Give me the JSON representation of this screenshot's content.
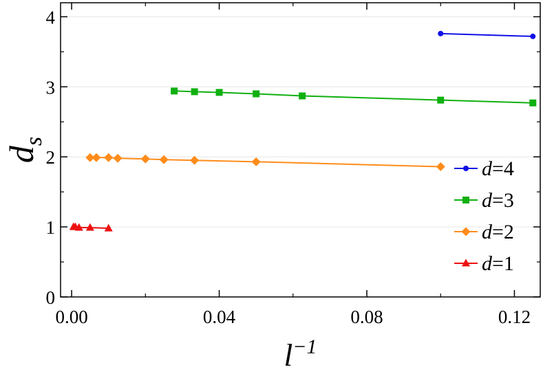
{
  "chart_data": {
    "type": "line",
    "title": "",
    "xlabel": {
      "base": "l",
      "sup": "−1"
    },
    "ylabel": {
      "base": "d",
      "sub": "s"
    },
    "xlim": [
      -0.003,
      0.127
    ],
    "ylim": [
      0,
      4.2
    ],
    "x_ticks": [
      0.0,
      0.04,
      0.08,
      0.12
    ],
    "x_tick_labels": [
      "0.00",
      "0.04",
      "0.08",
      "0.12"
    ],
    "y_ticks": [
      0,
      1,
      2,
      3,
      4
    ],
    "y_tick_labels": [
      "0",
      "1",
      "2",
      "3",
      "4"
    ],
    "grid": "horizontal",
    "legend_position": "bottom-right",
    "series": [
      {
        "name": "d=4",
        "name_var": "d",
        "name_value": "=4",
        "color": "#1010e8",
        "marker": "circle",
        "x": [
          0.1,
          0.125
        ],
        "y": [
          3.76,
          3.72
        ]
      },
      {
        "name": "d=3",
        "name_var": "d",
        "name_value": "=3",
        "color": "#10b010",
        "marker": "square",
        "x": [
          0.0278,
          0.0333,
          0.04,
          0.05,
          0.0625,
          0.1,
          0.125
        ],
        "y": [
          2.94,
          2.93,
          2.92,
          2.9,
          2.87,
          2.81,
          2.77
        ]
      },
      {
        "name": "d=2",
        "name_var": "d",
        "name_value": "=2",
        "color": "#ff8c1a",
        "marker": "diamond",
        "x": [
          0.005,
          0.0067,
          0.01,
          0.0125,
          0.02,
          0.025,
          0.0333,
          0.05,
          0.1
        ],
        "y": [
          1.99,
          1.99,
          1.99,
          1.98,
          1.97,
          1.96,
          1.95,
          1.93,
          1.86
        ]
      },
      {
        "name": "d=1",
        "name_var": "d",
        "name_value": "=1",
        "color": "#ee1111",
        "marker": "triangle",
        "x": [
          0.0005,
          0.001,
          0.002,
          0.005,
          0.01
        ],
        "y": [
          1.0,
          1.0,
          0.99,
          0.99,
          0.98
        ]
      }
    ]
  }
}
